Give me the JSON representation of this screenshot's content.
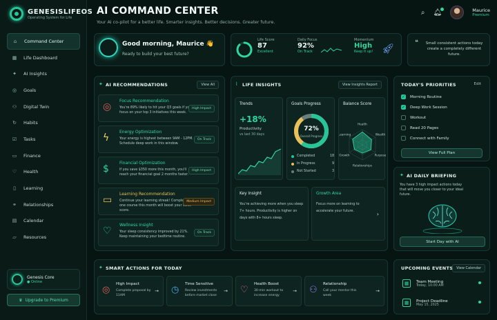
{
  "brand": {
    "name": "GENESISLIFEOS",
    "tagline": "Operating System for Life"
  },
  "sidebar": {
    "items": [
      {
        "label": "Command Center",
        "icon": "home-icon"
      },
      {
        "label": "Life Dashboard",
        "icon": "dashboard-icon"
      },
      {
        "label": "AI Insights",
        "icon": "sparkle-icon"
      },
      {
        "label": "Goals",
        "icon": "target-icon"
      },
      {
        "label": "Digital Twin",
        "icon": "twin-icon"
      },
      {
        "label": "Habits",
        "icon": "habit-icon"
      },
      {
        "label": "Tasks",
        "icon": "checklist-icon"
      },
      {
        "label": "Finance",
        "icon": "wallet-icon"
      },
      {
        "label": "Health",
        "icon": "heart-icon"
      },
      {
        "label": "Learning",
        "icon": "book-icon"
      },
      {
        "label": "Relationships",
        "icon": "people-icon"
      },
      {
        "label": "Calendar",
        "icon": "calendar-icon"
      },
      {
        "label": "Resources",
        "icon": "folder-icon"
      }
    ],
    "core": {
      "name": "Genesis Core",
      "status": "● Online"
    },
    "upgrade_label": "Upgrade to Premium"
  },
  "header": {
    "title": "AI COMMAND CENTER",
    "subtitle": "Your AI co-pilot for a better life. Smarter insights. Better decisions. Greater future.",
    "user": {
      "name": "Maurice",
      "plan": "Premium"
    }
  },
  "greeting": {
    "title": "Good morning, Maurice 👋",
    "subtitle": "Ready to build your best future?"
  },
  "stats": {
    "life_score": {
      "label": "Life Score",
      "value": "87",
      "sub": "Excellent",
      "progress": 0.87
    },
    "daily_focus": {
      "label": "Daily Focus",
      "value": "92%",
      "sub": "On Track"
    },
    "momentum": {
      "label": "Momentum",
      "value": "High",
      "sub": "Keep it up!"
    }
  },
  "quote": "Small consistent actions today create a completely different future.",
  "recommendations": {
    "title": "AI RECOMMENDATIONS",
    "view_all": "View All",
    "items": [
      {
        "title": "Focus Recommendation",
        "desc": "You're 89% likely to hit your Q3 goals if you focus on your top 3 initiatives this week.",
        "tag": "High Impact",
        "icon": "target-icon",
        "tag_color": "#7de3bd"
      },
      {
        "title": "Energy Optimization",
        "desc": "Your energy is highest between 9AM - 12PM. Schedule deep work in this window.",
        "tag": "On Track",
        "icon": "lightning-icon",
        "tag_color": "#7de3bd"
      },
      {
        "title": "Financial Optimization",
        "desc": "If you save $350 more this month, you'll reach your financial goal 2 months faster.",
        "tag": "High Impact",
        "icon": "dollar-icon",
        "tag_color": "#7de3bd"
      },
      {
        "title": "Learning Recommendation",
        "desc": "Continue your learning streak! Completing one course this month will boost your skills score.",
        "tag": "Medium Impact",
        "icon": "book-icon",
        "tag_color": "#e8c15a"
      },
      {
        "title": "Wellness Insight",
        "desc": "Your sleep consistency improved by 21%. Keep maintaining your bedtime routine.",
        "tag": "On Track",
        "icon": "heartbeat-icon",
        "tag_color": "#7de3bd"
      }
    ]
  },
  "insights": {
    "title": "LIFE INSIGHTS",
    "view_report": "View Insights Report",
    "trends": {
      "title": "Trends",
      "value": "+18%",
      "label": "Productivity",
      "sub": "vs last 30 days"
    },
    "goals": {
      "title": "Goals Progress",
      "value": "72%",
      "label": "Overall Progress",
      "progress": 0.72,
      "legend": [
        {
          "label": "Completed",
          "value": "18",
          "color": "#27c59a"
        },
        {
          "label": "In Progress",
          "value": "9",
          "color": "#e8c15a"
        },
        {
          "label": "Not Started",
          "value": "3",
          "color": "#6b7f7a"
        }
      ]
    },
    "balance": {
      "title": "Balance Score",
      "axes": [
        "Health",
        "Wealth",
        "Purpose",
        "Relationships",
        "Growth",
        "Learning"
      ],
      "values": [
        0.85,
        0.7,
        0.65,
        0.55,
        0.6,
        0.75
      ]
    },
    "key_insight": {
      "title": "Key Insight",
      "text": "You're achieving more when you sleep 7+ hours. Productivity is higher on days with 8+ hours sleep."
    },
    "growth": {
      "title": "Growth Area",
      "text": "Focus more on learning to accelerate your future."
    }
  },
  "priorities": {
    "title": "TODAY'S PRIORITIES",
    "edit": "Edit",
    "items": [
      {
        "label": "Morning Routine",
        "done": true
      },
      {
        "label": "Deep Work Session",
        "done": true
      },
      {
        "label": "Workout",
        "done": false
      },
      {
        "label": "Read 20 Pages",
        "done": false
      },
      {
        "label": "Connect with Family",
        "done": false
      }
    ],
    "view_plan": "View Full Plan"
  },
  "briefing": {
    "title": "AI DAILY BRIEFING",
    "text": "You have 3 high impact actions today that will move you closer to your ideal future.",
    "button": "Start Day with AI"
  },
  "smart_actions": {
    "title": "SMART ACTIONS FOR TODAY",
    "items": [
      {
        "title": "High Impact",
        "desc": "Complete proposal by 11AM",
        "icon": "target-icon",
        "color": "#e25d5d"
      },
      {
        "title": "Time Sensitive",
        "desc": "Review investments before market close",
        "icon": "clock-icon",
        "color": "#4aa8e8"
      },
      {
        "title": "Health Boost",
        "desc": "30-min workout to increase energy",
        "icon": "heart-icon",
        "color": "#e86aa6"
      },
      {
        "title": "Relationship",
        "desc": "Call your mentor this week",
        "icon": "people-icon",
        "color": "#9a7cf0"
      }
    ]
  },
  "events": {
    "title": "UPCOMING EVENTS",
    "view_calendar": "View Calendar",
    "items": [
      {
        "title": "Team Meeting",
        "time": "Today, 10:00 AM"
      },
      {
        "title": "Project Deadline",
        "time": "May 15, 2025"
      }
    ]
  }
}
